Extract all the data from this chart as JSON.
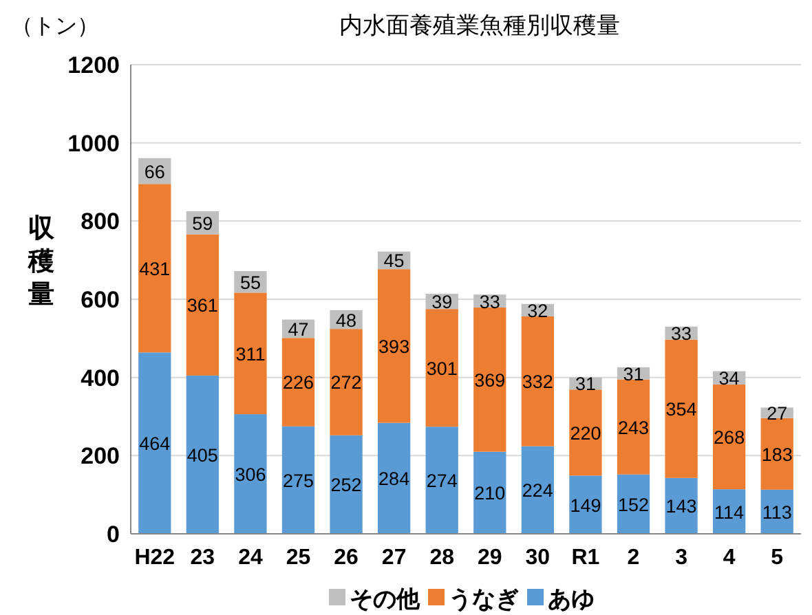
{
  "chart_data": {
    "type": "bar",
    "stacked": true,
    "title": "内水面養殖業魚種別収穫量",
    "ylabel": "収穫量",
    "annotations": [
      "（トン）"
    ],
    "categories": [
      "H22",
      "23",
      "24",
      "25",
      "26",
      "27",
      "28",
      "29",
      "30",
      "R1",
      "2",
      "3",
      "4",
      "5"
    ],
    "series": [
      {
        "name": "あゆ",
        "color": "#5b9bd5",
        "values": [
          464,
          405,
          306,
          275,
          252,
          284,
          274,
          210,
          224,
          149,
          152,
          143,
          114,
          113
        ]
      },
      {
        "name": "うなぎ",
        "color": "#ed7d31",
        "values": [
          431,
          361,
          311,
          226,
          272,
          393,
          301,
          369,
          332,
          220,
          243,
          354,
          268,
          183
        ]
      },
      {
        "name": "その他",
        "color": "#bfbfbf",
        "values": [
          66,
          59,
          55,
          47,
          48,
          45,
          39,
          33,
          32,
          31,
          31,
          33,
          34,
          27
        ]
      }
    ],
    "ylim": [
      0,
      1200
    ],
    "yticks": [
      0,
      200,
      400,
      600,
      800,
      1000,
      1200
    ],
    "grid": "y",
    "legend": "bottom",
    "data_labels": true
  }
}
